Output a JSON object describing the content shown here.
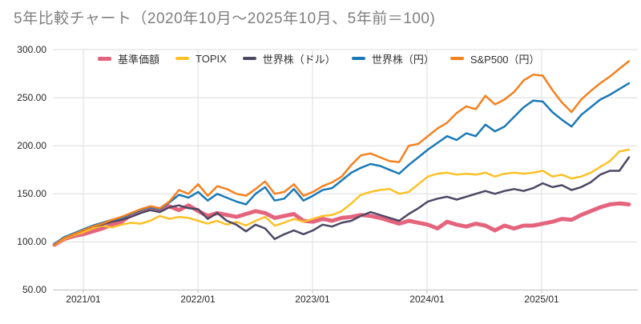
{
  "title": "5年比較チャート（2020年10月〜2025年10月、5年前＝100)",
  "chart_data": {
    "type": "line",
    "x_start": "2020/10",
    "x_end": "2025/10",
    "x_interval": "monthly",
    "x_tick_labels": [
      "2021/01",
      "2022/01",
      "2023/01",
      "2024/01",
      "2025/01"
    ],
    "y_tick_labels": [
      "300.00",
      "250.00",
      "200.00",
      "150.00",
      "100.00",
      "50.00"
    ],
    "ylim": [
      50,
      300
    ],
    "grid": true,
    "legend_position": "top",
    "baseline_note": "all series indexed to 100 five years ago",
    "series": [
      {
        "name": "基準価額",
        "color": "#e5647d",
        "width": 5,
        "values": [
          97,
          103,
          106,
          108,
          111,
          114,
          118,
          121,
          128,
          132,
          136,
          134,
          137,
          133,
          138,
          132,
          127,
          130,
          128,
          126,
          129,
          132,
          130,
          125,
          127,
          129,
          122,
          121,
          124,
          122,
          125,
          126,
          128,
          127,
          125,
          122,
          119,
          122,
          120,
          118,
          114,
          121,
          118,
          116,
          119,
          117,
          112,
          117,
          114,
          117,
          117,
          119,
          121,
          124,
          123,
          128,
          132,
          136,
          139,
          140,
          139
        ]
      },
      {
        "name": "TOPIX",
        "color": "#fcc128",
        "width": 2.5,
        "values": [
          97,
          103,
          107,
          110,
          114,
          117,
          115,
          118,
          120,
          119,
          122,
          127,
          124,
          126,
          125,
          122,
          119,
          122,
          118,
          121,
          117,
          122,
          126,
          117,
          120,
          124,
          121,
          124,
          127,
          128,
          132,
          140,
          149,
          152,
          154,
          155,
          150,
          152,
          160,
          168,
          171,
          172,
          170,
          171,
          170,
          172,
          168,
          171,
          172,
          171,
          172,
          174,
          168,
          170,
          166,
          168,
          172,
          178,
          184,
          194,
          196
        ]
      },
      {
        "name": "世界株（ドル）",
        "color": "#4d4763",
        "width": 2.5,
        "values": [
          98,
          104,
          108,
          112,
          116,
          118,
          121,
          123,
          126,
          130,
          133,
          131,
          136,
          138,
          135,
          134,
          124,
          130,
          122,
          118,
          111,
          118,
          114,
          103,
          108,
          112,
          108,
          112,
          118,
          116,
          120,
          122,
          127,
          131,
          128,
          125,
          122,
          129,
          135,
          142,
          145,
          147,
          144,
          147,
          150,
          153,
          150,
          153,
          155,
          153,
          156,
          161,
          157,
          159,
          154,
          157,
          162,
          170,
          174,
          174,
          188
        ]
      },
      {
        "name": "世界株（円）",
        "color": "#1b79b7",
        "width": 2.5,
        "values": [
          98,
          105,
          109,
          113,
          117,
          120,
          123,
          125,
          129,
          133,
          136,
          134,
          141,
          149,
          146,
          152,
          143,
          150,
          146,
          142,
          139,
          150,
          157,
          143,
          145,
          155,
          143,
          148,
          154,
          156,
          164,
          172,
          177,
          181,
          179,
          175,
          171,
          180,
          188,
          196,
          203,
          210,
          206,
          213,
          210,
          222,
          215,
          220,
          230,
          240,
          247,
          246,
          235,
          227,
          220,
          232,
          240,
          248,
          253,
          259,
          265
        ]
      },
      {
        "name": "S&P500（円）",
        "color": "#f5811f",
        "width": 2.5,
        "values": [
          97,
          104,
          108,
          112,
          116,
          119,
          123,
          126,
          130,
          134,
          137,
          135,
          142,
          154,
          150,
          160,
          148,
          158,
          155,
          150,
          148,
          155,
          163,
          150,
          152,
          160,
          148,
          152,
          158,
          162,
          168,
          180,
          190,
          192,
          188,
          184,
          183,
          200,
          202,
          210,
          218,
          224,
          234,
          241,
          238,
          252,
          243,
          248,
          256,
          268,
          274,
          273,
          258,
          245,
          235,
          248,
          257,
          265,
          272,
          280,
          288
        ]
      }
    ]
  },
  "colors": {
    "title_text": "#7f7f7f",
    "axis_text": "#262626",
    "gridline": "#dcdcdc",
    "axis_line": "#c0c0c0"
  }
}
